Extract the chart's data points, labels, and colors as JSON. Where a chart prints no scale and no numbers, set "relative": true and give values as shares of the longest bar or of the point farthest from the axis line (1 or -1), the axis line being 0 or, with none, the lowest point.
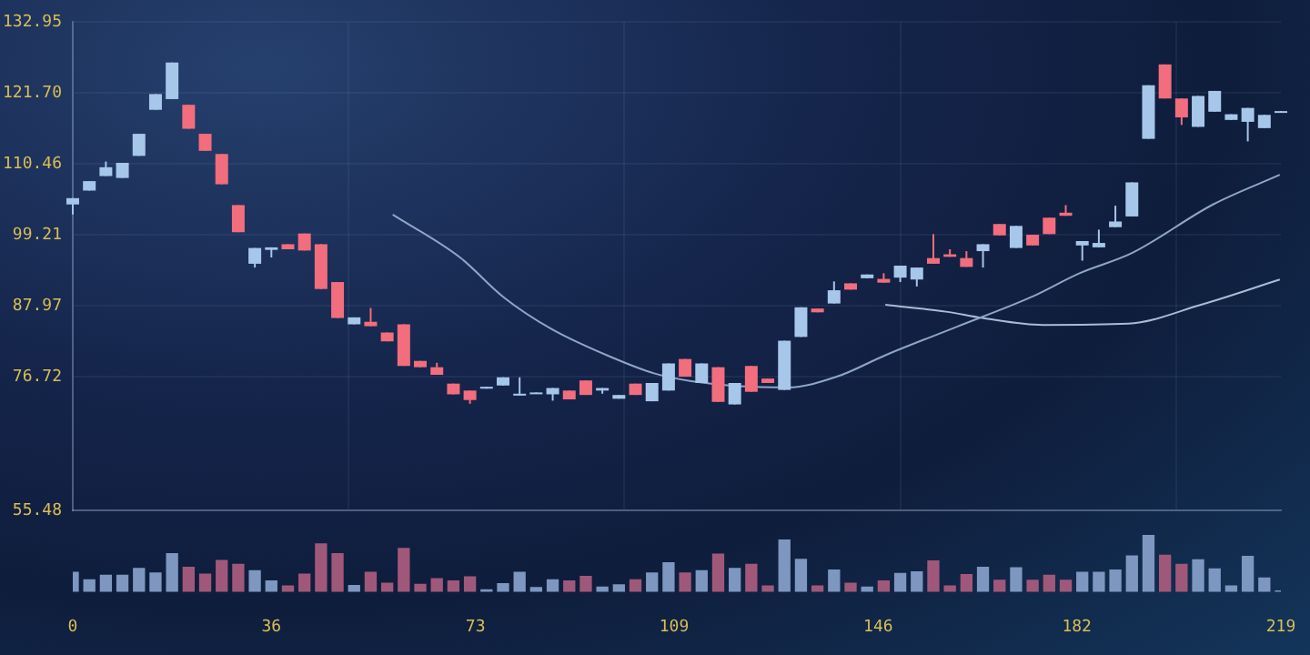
{
  "chart_data": [
    {
      "type": "candlestick",
      "x": [
        0,
        3,
        6,
        9,
        12,
        15,
        18,
        21,
        24,
        27,
        30,
        33,
        36,
        39,
        42,
        45,
        48,
        51,
        54,
        57,
        60,
        63,
        66,
        69,
        72,
        75,
        78,
        81,
        84,
        87,
        90,
        93,
        96,
        99,
        102,
        105,
        108,
        111,
        114,
        117,
        120,
        123,
        126,
        129,
        132,
        135,
        138,
        141,
        144,
        147,
        150,
        153,
        156,
        159,
        162,
        165,
        168,
        171,
        174,
        177,
        180,
        183,
        186,
        189,
        192,
        195,
        198,
        201,
        204,
        207,
        210,
        213,
        216,
        219
      ],
      "ohlc": [
        [
          104.0,
          105.0,
          102.4,
          105.0
        ],
        [
          106.2,
          107.7,
          106.2,
          107.7
        ],
        [
          108.5,
          110.8,
          108.5,
          109.9
        ],
        [
          108.2,
          110.6,
          108.2,
          110.6
        ],
        [
          111.7,
          115.2,
          111.7,
          115.2
        ],
        [
          119.0,
          121.5,
          119.0,
          121.5
        ],
        [
          120.7,
          126.5,
          120.7,
          126.5
        ],
        [
          119.8,
          119.8,
          116.0,
          116.0
        ],
        [
          115.2,
          115.2,
          112.5,
          112.5
        ],
        [
          112.0,
          112.0,
          107.2,
          107.2
        ],
        [
          103.9,
          103.9,
          99.6,
          99.6
        ],
        [
          94.6,
          97.1,
          94.0,
          97.1
        ],
        [
          96.8,
          97.2,
          95.6,
          97.2
        ],
        [
          97.7,
          97.7,
          96.9,
          96.9
        ],
        [
          99.4,
          99.4,
          96.7,
          96.7
        ],
        [
          97.7,
          97.7,
          90.6,
          90.6
        ],
        [
          91.7,
          91.7,
          86.0,
          86.0
        ],
        [
          85.0,
          86.1,
          85.0,
          86.1
        ],
        [
          85.4,
          87.6,
          84.7,
          84.7
        ],
        [
          83.7,
          83.7,
          82.3,
          82.3
        ],
        [
          85.0,
          85.0,
          78.4,
          78.4
        ],
        [
          79.2,
          79.2,
          78.2,
          78.2
        ],
        [
          78.2,
          78.9,
          77.0,
          77.0
        ],
        [
          75.6,
          75.6,
          73.9,
          73.9
        ],
        [
          74.5,
          74.5,
          72.4,
          73.0
        ],
        [
          74.8,
          75.1,
          74.8,
          75.1
        ],
        [
          75.3,
          76.6,
          75.3,
          76.6
        ],
        [
          73.7,
          76.6,
          73.7,
          74.0
        ],
        [
          74.0,
          74.2,
          74.0,
          74.2
        ],
        [
          73.9,
          74.9,
          72.9,
          74.9
        ],
        [
          74.5,
          74.5,
          73.1,
          73.1
        ],
        [
          76.1,
          76.1,
          73.8,
          73.8
        ],
        [
          74.5,
          74.9,
          74.0,
          74.9
        ],
        [
          73.2,
          73.8,
          73.2,
          73.8
        ],
        [
          75.6,
          75.6,
          73.8,
          73.8
        ],
        [
          72.8,
          75.7,
          72.8,
          75.7
        ],
        [
          74.5,
          78.8,
          74.5,
          78.8
        ],
        [
          79.5,
          79.5,
          76.7,
          76.7
        ],
        [
          75.7,
          78.8,
          75.7,
          78.8
        ],
        [
          78.2,
          78.2,
          72.7,
          72.7
        ],
        [
          72.3,
          75.7,
          72.3,
          75.7
        ],
        [
          78.4,
          78.4,
          74.3,
          74.3
        ],
        [
          76.4,
          76.4,
          75.7,
          75.7
        ],
        [
          74.6,
          82.4,
          74.6,
          82.4
        ],
        [
          83.0,
          87.7,
          83.0,
          87.7
        ],
        [
          87.5,
          87.5,
          86.9,
          86.9
        ],
        [
          88.3,
          91.8,
          88.3,
          90.4
        ],
        [
          91.5,
          91.5,
          90.5,
          90.5
        ],
        [
          92.3,
          92.9,
          92.3,
          92.9
        ],
        [
          92.2,
          93.1,
          91.6,
          91.6
        ],
        [
          92.4,
          94.3,
          91.7,
          94.3
        ],
        [
          92.1,
          94.0,
          91.0,
          94.0
        ],
        [
          95.5,
          99.3,
          94.6,
          94.6
        ],
        [
          96.1,
          96.9,
          95.7,
          95.7
        ],
        [
          95.5,
          96.6,
          94.1,
          94.1
        ],
        [
          96.6,
          97.7,
          94.0,
          97.7
        ],
        [
          100.9,
          100.9,
          99.1,
          99.1
        ],
        [
          97.1,
          100.6,
          97.1,
          100.6
        ],
        [
          99.2,
          99.2,
          97.5,
          97.5
        ],
        [
          101.9,
          101.9,
          99.3,
          99.3
        ],
        [
          102.7,
          103.9,
          102.2,
          102.2
        ],
        [
          97.5,
          98.2,
          95.1,
          98.2
        ],
        [
          97.2,
          100.0,
          97.2,
          97.9
        ],
        [
          100.4,
          103.8,
          100.4,
          101.3
        ],
        [
          102.1,
          107.5,
          102.1,
          107.5
        ],
        [
          114.4,
          122.9,
          114.4,
          122.9
        ],
        [
          126.2,
          126.2,
          120.8,
          120.8
        ],
        [
          120.8,
          120.8,
          116.6,
          117.8
        ],
        [
          116.3,
          121.2,
          116.3,
          121.2
        ],
        [
          118.7,
          122.0,
          118.7,
          122.0
        ],
        [
          117.4,
          118.3,
          117.4,
          118.3
        ],
        [
          117.1,
          119.3,
          114.0,
          119.3
        ],
        [
          116.1,
          118.2,
          116.1,
          118.2
        ],
        [
          118.6,
          118.8,
          118.6,
          118.8
        ]
      ],
      "colors": [
        "#a6c6ea",
        "#a6c6ea",
        "#a6c6ea",
        "#a6c6ea",
        "#a6c6ea",
        "#a6c6ea",
        "#a6c6ea",
        "#f26d7d",
        "#f26d7d",
        "#f26d7d",
        "#f26d7d",
        "#a6c6ea",
        "#a6c6ea",
        "#f26d7d",
        "#f26d7d",
        "#f26d7d",
        "#f26d7d",
        "#a6c6ea",
        "#f26d7d",
        "#f26d7d",
        "#f26d7d",
        "#f26d7d",
        "#f26d7d",
        "#f26d7d",
        "#f26d7d",
        "#a6c6ea",
        "#a6c6ea",
        "#a6c6ea",
        "#a6c6ea",
        "#a6c6ea",
        "#f26d7d",
        "#f26d7d",
        "#a6c6ea",
        "#a6c6ea",
        "#f26d7d",
        "#a6c6ea",
        "#a6c6ea",
        "#f26d7d",
        "#a6c6ea",
        "#f26d7d",
        "#a6c6ea",
        "#f26d7d",
        "#f26d7d",
        "#a6c6ea",
        "#a6c6ea",
        "#f26d7d",
        "#a6c6ea",
        "#f26d7d",
        "#a6c6ea",
        "#f26d7d",
        "#a6c6ea",
        "#a6c6ea",
        "#f26d7d",
        "#f26d7d",
        "#f26d7d",
        "#a6c6ea",
        "#f26d7d",
        "#a6c6ea",
        "#f26d7d",
        "#f26d7d",
        "#f26d7d",
        "#a6c6ea",
        "#a6c6ea",
        "#a6c6ea",
        "#a6c6ea",
        "#a6c6ea",
        "#f26d7d",
        "#f26d7d",
        "#a6c6ea",
        "#a6c6ea",
        "#a6c6ea",
        "#a6c6ea",
        "#a6c6ea",
        "#a6c6ea"
      ],
      "series": [
        {
          "type": "line",
          "color": "#8ea6c8",
          "x": [
            58.0,
            70.2,
            78.1,
            86.7,
            97.9,
            105.5,
            112.1,
            120.9,
            129.6,
            138.5,
            147.3,
            160.5,
            173.7,
            182.5,
            192.0,
            206.7,
            218.8
          ],
          "values": [
            102.4,
            95.6,
            89.3,
            84.3,
            79.7,
            77.2,
            76.0,
            75.2,
            75.0,
            76.7,
            80.1,
            84.7,
            89.3,
            93.1,
            96.3,
            104.0,
            108.7
          ]
        },
        {
          "type": "line",
          "color": "#a9bcd6",
          "x": [
            147.3,
            158.3,
            164.9,
            175.9,
            191.3,
            204.5,
            218.8
          ],
          "values": [
            88.1,
            87.0,
            86.0,
            84.9,
            85.1,
            88.1,
            92.1
          ]
        }
      ],
      "marker": "none",
      "xlim": [
        0,
        219
      ],
      "ylim": [
        55.48,
        132.95
      ],
      "yticks": [
        {
          "value": 55.48,
          "label": "55.48"
        },
        {
          "value": 76.72,
          "label": "76.72"
        },
        {
          "value": 87.97,
          "label": "87.97"
        },
        {
          "value": 99.21,
          "label": "99.21"
        },
        {
          "value": 110.46,
          "label": "110.46"
        },
        {
          "value": 121.7,
          "label": "121.70"
        },
        {
          "value": 132.95,
          "label": "132.95"
        }
      ],
      "grid": true,
      "tick_labels": "y"
    },
    {
      "type": "bar",
      "x": [
        0,
        3,
        6,
        9,
        12,
        15,
        18,
        21,
        24,
        27,
        30,
        33,
        36,
        39,
        42,
        45,
        48,
        51,
        54,
        57,
        60,
        63,
        66,
        69,
        72,
        75,
        78,
        81,
        84,
        87,
        90,
        93,
        96,
        99,
        102,
        105,
        108,
        111,
        114,
        117,
        120,
        123,
        126,
        129,
        132,
        135,
        138,
        141,
        144,
        147,
        150,
        153,
        156,
        159,
        162,
        165,
        168,
        171,
        174,
        177,
        180,
        183,
        186,
        189,
        192,
        195,
        198,
        201,
        204,
        207,
        210,
        213,
        216,
        219
      ],
      "values": [
        0.34,
        0.21,
        0.29,
        0.29,
        0.41,
        0.33,
        0.67,
        0.43,
        0.31,
        0.55,
        0.48,
        0.37,
        0.19,
        0.1,
        0.31,
        0.84,
        0.67,
        0.11,
        0.34,
        0.15,
        0.76,
        0.13,
        0.23,
        0.19,
        0.26,
        0.03,
        0.14,
        0.34,
        0.07,
        0.21,
        0.19,
        0.27,
        0.08,
        0.12,
        0.21,
        0.33,
        0.51,
        0.33,
        0.37,
        0.66,
        0.41,
        0.48,
        0.1,
        0.91,
        0.57,
        0.1,
        0.38,
        0.15,
        0.08,
        0.19,
        0.32,
        0.35,
        0.54,
        0.1,
        0.3,
        0.43,
        0.2,
        0.42,
        0.2,
        0.29,
        0.2,
        0.34,
        0.34,
        0.38,
        0.63,
        1,
        0.64,
        0.48,
        0.56,
        0.4,
        0.1,
        0.62,
        0.24,
        0.01
      ],
      "colors": [
        "#7d97c0",
        "#7d97c0",
        "#7d97c0",
        "#7d97c0",
        "#7d97c0",
        "#7d97c0",
        "#7d97c0",
        "#a0587a",
        "#a0587a",
        "#a0587a",
        "#a0587a",
        "#7d97c0",
        "#7d97c0",
        "#a0587a",
        "#a0587a",
        "#a0587a",
        "#a0587a",
        "#7d97c0",
        "#a0587a",
        "#a0587a",
        "#a0587a",
        "#a0587a",
        "#a0587a",
        "#a0587a",
        "#a0587a",
        "#7d97c0",
        "#7d97c0",
        "#7d97c0",
        "#7d97c0",
        "#7d97c0",
        "#a0587a",
        "#a0587a",
        "#7d97c0",
        "#7d97c0",
        "#a0587a",
        "#7d97c0",
        "#7d97c0",
        "#a0587a",
        "#7d97c0",
        "#a0587a",
        "#7d97c0",
        "#a0587a",
        "#a0587a",
        "#7d97c0",
        "#7d97c0",
        "#a0587a",
        "#7d97c0",
        "#a0587a",
        "#7d97c0",
        "#a0587a",
        "#7d97c0",
        "#7d97c0",
        "#a0587a",
        "#a0587a",
        "#a0587a",
        "#7d97c0",
        "#a0587a",
        "#7d97c0",
        "#a0587a",
        "#a0587a",
        "#a0587a",
        "#7d97c0",
        "#7d97c0",
        "#7d97c0",
        "#7d97c0",
        "#7d97c0",
        "#a0587a",
        "#a0587a",
        "#7d97c0",
        "#7d97c0",
        "#7d97c0",
        "#7d97c0",
        "#7d97c0",
        "#7d97c0"
      ],
      "relative": true,
      "xlim": [
        0,
        219
      ],
      "xticks": [
        0,
        36,
        73,
        109,
        146,
        182,
        219
      ],
      "tick_labels": "x"
    }
  ]
}
